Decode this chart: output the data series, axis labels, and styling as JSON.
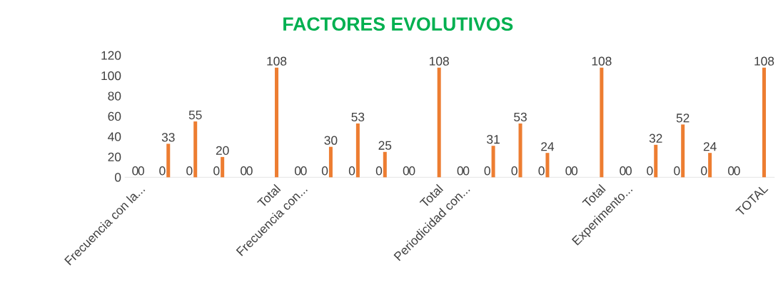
{
  "chart_data": {
    "type": "bar",
    "title": "FACTORES EVOLUTIVOS",
    "categories": [
      "Frecuencia con la...",
      null,
      null,
      null,
      null,
      "Total",
      "Frecuencia con...",
      null,
      null,
      null,
      null,
      "Total",
      "Periodicidad con...",
      null,
      null,
      null,
      null,
      "Total",
      "Experimento...",
      null,
      null,
      null,
      null,
      "TOTAL"
    ],
    "series": [
      {
        "color": "#4472c4",
        "values": [
          0,
          0,
          0,
          0,
          0,
          null,
          0,
          0,
          0,
          0,
          0,
          null,
          0,
          0,
          0,
          0,
          0,
          null,
          0,
          0,
          0,
          0,
          0,
          null
        ]
      },
      {
        "color": "#ed7d31",
        "values": [
          0,
          33,
          55,
          20,
          0,
          108,
          0,
          30,
          53,
          25,
          0,
          108,
          0,
          31,
          53,
          24,
          0,
          108,
          0,
          32,
          52,
          24,
          0,
          108
        ]
      }
    ],
    "ylim": [
      0,
      120
    ],
    "yticks": [
      0,
      20,
      40,
      60,
      80,
      100,
      120
    ],
    "data_labels": true,
    "grid": false
  }
}
